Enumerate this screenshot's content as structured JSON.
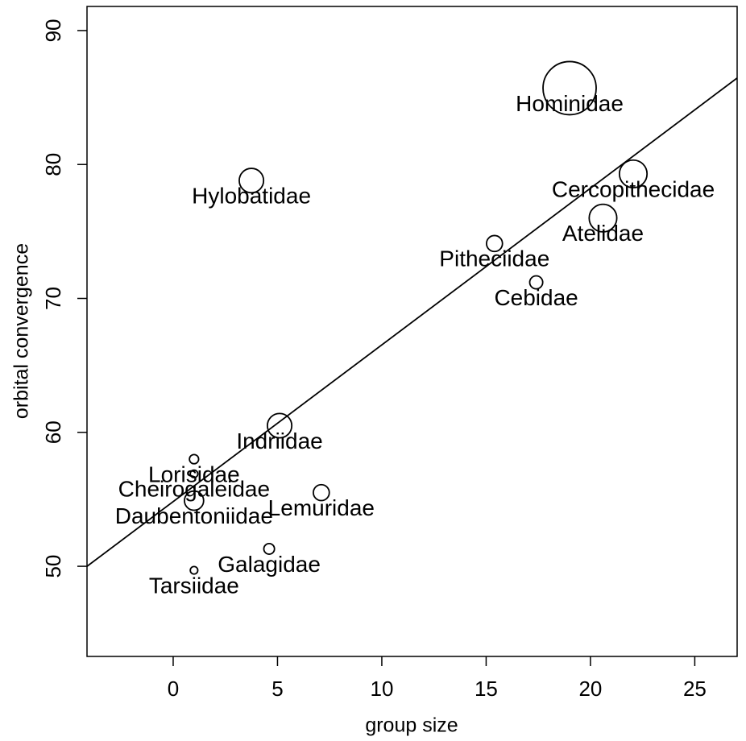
{
  "chart_data": {
    "type": "scatter",
    "xlabel": "group size",
    "ylabel": "orbital convergence",
    "xlim": [
      -4.13,
      27.03
    ],
    "ylim": [
      43.27,
      91.8
    ],
    "xticks": [
      0,
      5,
      10,
      15,
      20,
      25
    ],
    "yticks": [
      50,
      60,
      70,
      80,
      90
    ],
    "color": "#000000",
    "labels": [
      "Hominidae",
      "Hylobatidae",
      "Cercopithecidae",
      "Atelidae",
      "Pitheciidae",
      "Cebidae",
      "Indriidae",
      "Lorisidae",
      "Cheirogaleidae",
      "Daubentoniidae",
      "Lemuridae",
      "Galagidae",
      "Tarsiidae"
    ],
    "x": [
      19.0,
      3.75,
      22.05,
      20.6,
      15.4,
      17.4,
      5.1,
      1.0,
      1.0,
      1.0,
      7.1,
      4.6,
      1.0
    ],
    "y": [
      85.7,
      78.8,
      79.3,
      76.0,
      74.1,
      71.2,
      60.5,
      58.0,
      56.9,
      54.9,
      55.5,
      51.3,
      49.7
    ],
    "sizes": [
      100,
      21,
      27,
      27,
      9,
      6,
      21,
      3,
      2,
      13,
      9,
      4,
      2
    ],
    "fit": {
      "intercept": 54.83,
      "slope": 1.17
    }
  }
}
